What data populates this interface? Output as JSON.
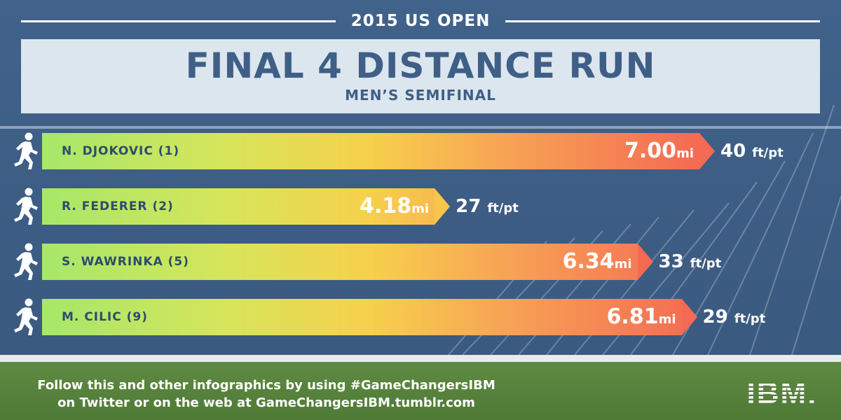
{
  "header": {
    "event": "2015 US OPEN",
    "title": "FINAL 4 DISTANCE RUN",
    "subtitle": "MEN’S SEMIFINAL"
  },
  "colors": {
    "court": "#3e5f86",
    "title_text": "#3f5f86",
    "bar_start": "#a6e76a",
    "bar_mid": "#f7d04c",
    "bar_end": "#f46a53",
    "grass": "#5a8540"
  },
  "chart_data": {
    "type": "bar",
    "orientation": "horizontal",
    "categories": [
      "N. DJOKOVIC (1)",
      "R. FEDERER (2)",
      "S. WAWRINKA (5)",
      "M. CILIC (9)"
    ],
    "series": [
      {
        "values": [
          7.0,
          4.18,
          6.34,
          6.81
        ]
      }
    ],
    "value_labels": [
      "7.00",
      "4.18",
      "6.34",
      "6.81"
    ],
    "value_unit": "mi",
    "secondary_labels": [
      "40",
      "27",
      "33",
      "29"
    ],
    "secondary_unit": "ft/pt",
    "icon": "runner-icon"
  },
  "footer": {
    "line1": "Follow this and other infographics by using #GameChangersIBM",
    "line2": "on Twitter or on the web at GameChangersIBM.tumblr.com",
    "logo": "IBM."
  }
}
